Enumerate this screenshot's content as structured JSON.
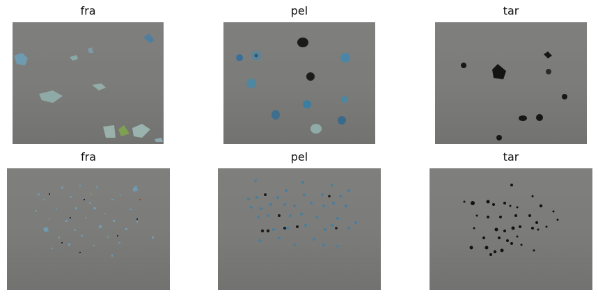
{
  "panels": [
    {
      "title": "fra"
    },
    {
      "title": "pel"
    },
    {
      "title": "tar"
    },
    {
      "title": "fra"
    },
    {
      "title": "pel"
    },
    {
      "title": "tar"
    }
  ],
  "colors": {
    "background": "#7d7d7b",
    "fragment": "#6f9aa3",
    "pellet": "#3f6f86",
    "tar": "#141414"
  }
}
